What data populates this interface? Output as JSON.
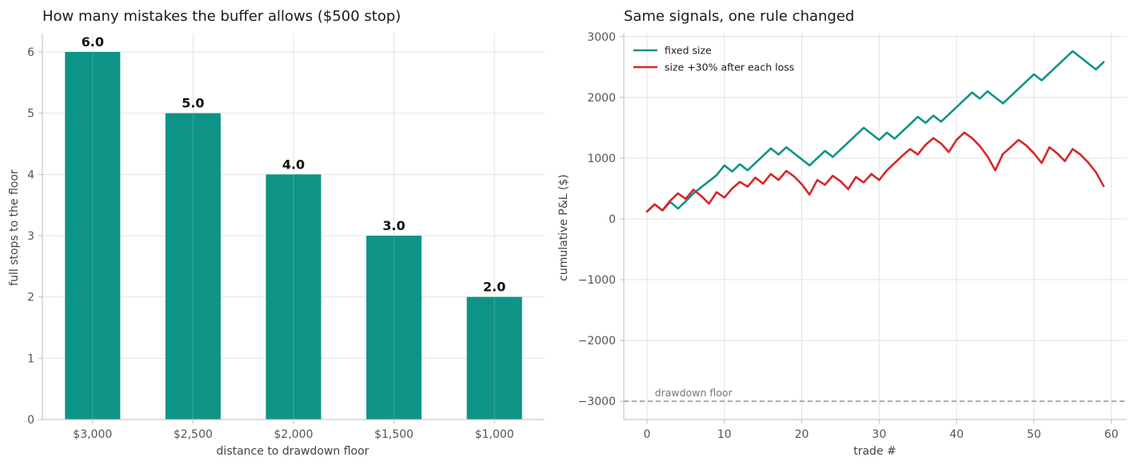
{
  "chart_data": [
    {
      "type": "bar",
      "title": "How many mistakes the buffer allows ($500 stop)",
      "xlabel": "distance to drawdown floor",
      "ylabel": "full stops to the floor",
      "categories": [
        "$3,000",
        "$2,500",
        "$2,000",
        "$1,500",
        "$1,000"
      ],
      "values": [
        6.0,
        5.0,
        4.0,
        3.0,
        2.0
      ],
      "value_labels": [
        "6.0",
        "5.0",
        "4.0",
        "3.0",
        "2.0"
      ],
      "ylim": [
        0,
        6.3
      ],
      "yticks": [
        0,
        1,
        2,
        3,
        4,
        5,
        6
      ],
      "grid": true,
      "color": "#0e9486"
    },
    {
      "type": "line",
      "title": "Same signals, one rule changed",
      "xlabel": "trade #",
      "ylabel": "cumulative P&L ($)",
      "xlim": [
        -3,
        62
      ],
      "ylim": [
        -3300,
        3050
      ],
      "xticks": [
        0,
        10,
        20,
        30,
        40,
        50,
        60
      ],
      "yticks": [
        -3000,
        -2000,
        -1000,
        0,
        1000,
        2000,
        3000
      ],
      "ytick_labels": [
        "−3000",
        "−2000",
        "−1000",
        "0",
        "1000",
        "2000",
        "3000"
      ],
      "grid": true,
      "legend_position": "top-left",
      "series": [
        {
          "name": "fixed size",
          "color": "#0e9486",
          "x": [
            0,
            1,
            2,
            3,
            4,
            5,
            6,
            7,
            8,
            9,
            10,
            11,
            12,
            13,
            14,
            15,
            16,
            17,
            18,
            19,
            20,
            21,
            22,
            23,
            24,
            25,
            26,
            27,
            28,
            29,
            30,
            31,
            32,
            33,
            34,
            35,
            36,
            37,
            38,
            39,
            40,
            41,
            42,
            43,
            44,
            45,
            46,
            47,
            48,
            49,
            50,
            51,
            52,
            53,
            54,
            55,
            56,
            57,
            58,
            59
          ],
          "values": [
            120,
            240,
            140,
            280,
            170,
            290,
            420,
            520,
            620,
            720,
            880,
            780,
            900,
            800,
            920,
            1040,
            1160,
            1060,
            1180,
            1080,
            980,
            880,
            1000,
            1120,
            1020,
            1140,
            1260,
            1380,
            1500,
            1400,
            1300,
            1420,
            1320,
            1440,
            1560,
            1680,
            1580,
            1700,
            1600,
            1720,
            1840,
            1960,
            2080,
            1980,
            2100,
            2000,
            1900,
            2020,
            2140,
            2260,
            2380,
            2280,
            2400,
            2520,
            2640,
            2760,
            2660,
            2560,
            2460,
            2580
          ]
        },
        {
          "name": "size +30% after each loss",
          "color": "#d62728",
          "x": [
            0,
            1,
            2,
            3,
            4,
            5,
            6,
            7,
            8,
            9,
            10,
            11,
            12,
            13,
            14,
            15,
            16,
            17,
            18,
            19,
            20,
            21,
            22,
            23,
            24,
            25,
            26,
            27,
            28,
            29,
            30,
            31,
            32,
            33,
            34,
            35,
            36,
            37,
            38,
            39,
            40,
            41,
            42,
            43,
            44,
            45,
            46,
            47,
            48,
            49,
            50,
            51,
            52,
            53,
            54,
            55,
            56,
            57,
            58,
            59
          ],
          "values": [
            120,
            240,
            140,
            300,
            420,
            330,
            480,
            380,
            250,
            440,
            350,
            500,
            610,
            530,
            680,
            580,
            740,
            640,
            790,
            700,
            570,
            400,
            640,
            560,
            710,
            620,
            490,
            690,
            600,
            740,
            640,
            800,
            920,
            1040,
            1150,
            1060,
            1220,
            1330,
            1240,
            1100,
            1300,
            1420,
            1330,
            1200,
            1030,
            800,
            1070,
            1180,
            1300,
            1210,
            1080,
            920,
            1180,
            1080,
            950,
            1150,
            1060,
            930,
            770,
            540
          ]
        }
      ],
      "reference_line": {
        "value": -3000,
        "label": "drawdown floor",
        "color": "#999999"
      }
    }
  ]
}
